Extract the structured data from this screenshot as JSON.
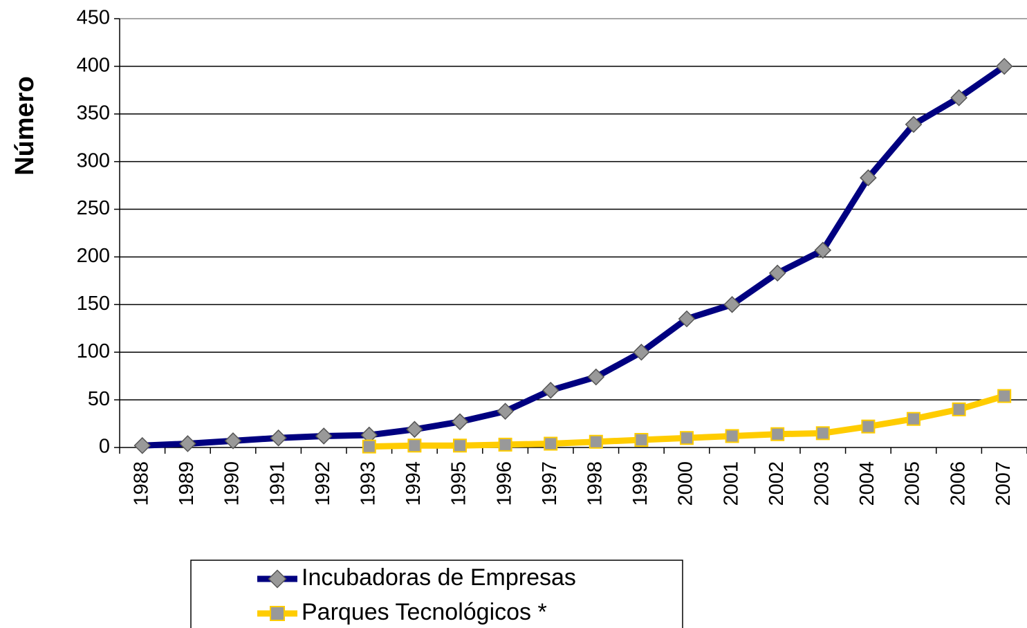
{
  "chart_data": {
    "type": "line",
    "y_label": "Número",
    "categories": [
      "1988",
      "1989",
      "1990",
      "1991",
      "1992",
      "1993",
      "1994",
      "1995",
      "1996",
      "1997",
      "1998",
      "1999",
      "2000",
      "2001",
      "2002",
      "2003",
      "2004",
      "2005",
      "2006",
      "2007"
    ],
    "series": [
      {
        "name": "Incubadoras de Empresas",
        "color": "#000080",
        "marker": "diamond",
        "marker_color": "#999999",
        "values": [
          2,
          4,
          7,
          10,
          12,
          13,
          19,
          27,
          38,
          60,
          74,
          100,
          135,
          150,
          183,
          207,
          283,
          339,
          367,
          400
        ]
      },
      {
        "name": "Parques Tecnológicos *",
        "color": "#ffcc00",
        "marker": "square",
        "marker_color": "#999999",
        "values": [
          null,
          null,
          null,
          null,
          null,
          1,
          2,
          2,
          3,
          4,
          6,
          8,
          10,
          12,
          14,
          15,
          22,
          30,
          40,
          54
        ]
      }
    ],
    "ylim": [
      0,
      450
    ],
    "yticks": [
      0,
      50,
      100,
      150,
      200,
      250,
      300,
      350,
      400,
      450
    ],
    "grid": true
  }
}
